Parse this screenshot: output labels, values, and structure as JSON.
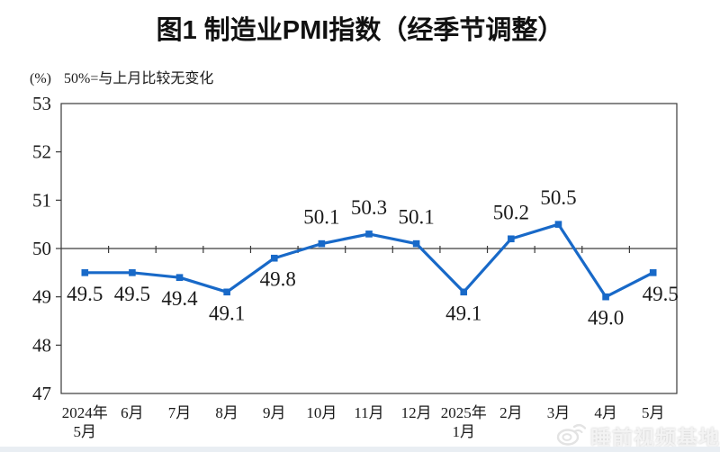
{
  "page": {
    "title": "图1  制造业PMI指数（经季节调整）",
    "unit_label": "(%)",
    "axis_note": "50%=与上月比较无变化",
    "watermark": "睡前视频基地"
  },
  "chart_data": {
    "type": "line",
    "title": "图1 制造业PMI指数（经季节调整）",
    "annotation": "50%=与上月比较无变化",
    "unit": "(%)",
    "categories": [
      "2024年\n5月",
      "6月",
      "7月",
      "8月",
      "9月",
      "10月",
      "11月",
      "12月",
      "2025年\n1月",
      "2月",
      "3月",
      "4月",
      "5月"
    ],
    "values": [
      49.5,
      49.5,
      49.4,
      49.1,
      49.8,
      50.1,
      50.3,
      50.1,
      49.1,
      50.2,
      50.5,
      49.0,
      49.5
    ],
    "data_labels": [
      "49.5",
      "49.5",
      "49.4",
      "49.1",
      "49.8",
      "50.1",
      "50.3",
      "50.1",
      "49.1",
      "50.2",
      "50.5",
      "49.0",
      "49.5"
    ],
    "label_positions": [
      "below",
      "below",
      "below",
      "below",
      "below",
      "above",
      "above",
      "above",
      "below",
      "above",
      "above",
      "below",
      "below"
    ],
    "label_dx": [
      0,
      0,
      0,
      0,
      4,
      0,
      0,
      0,
      0,
      0,
      0,
      0,
      8
    ],
    "ylim": [
      47,
      53
    ],
    "yticks": [
      47,
      48,
      49,
      50,
      51,
      52,
      53
    ],
    "reference_line": 50,
    "line_color": "#1869C8",
    "marker": "square",
    "axis_color": "#3a3a3a",
    "grid": false,
    "legend": "none"
  }
}
